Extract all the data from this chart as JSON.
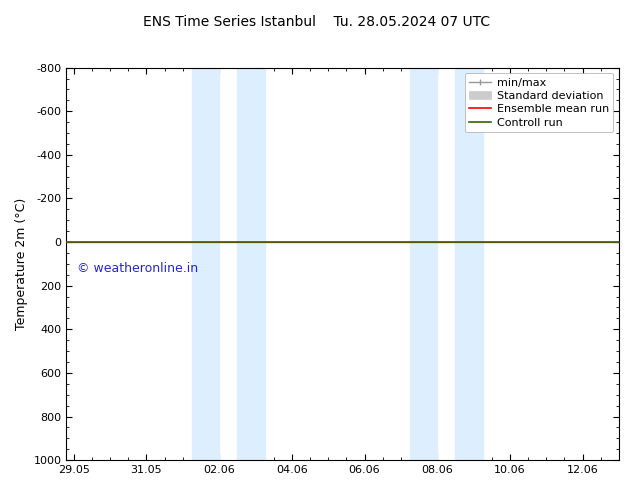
{
  "title": "ENS Time Series Istanbul",
  "title2": "Tu. 28.05.2024 07 UTC",
  "ylabel": "Temperature 2m (°C)",
  "ylim_top": -800,
  "ylim_bottom": 1000,
  "yticks": [
    -800,
    -600,
    -400,
    -200,
    0,
    200,
    400,
    600,
    800,
    1000
  ],
  "x_tick_labels": [
    "29.05",
    "31.05",
    "02.06",
    "04.06",
    "06.06",
    "08.06",
    "10.06",
    "12.06"
  ],
  "x_tick_pos": [
    0,
    2,
    4,
    6,
    8,
    10,
    12,
    14
  ],
  "xmin": -0.2,
  "xmax": 15.0,
  "watermark": "© weatheronline.in",
  "shade_bands": [
    {
      "xmin": 3.25,
      "xmax": 4.0
    },
    {
      "xmin": 4.5,
      "xmax": 5.25
    },
    {
      "xmin": 9.25,
      "xmax": 10.0
    },
    {
      "xmin": 10.5,
      "xmax": 11.25
    }
  ],
  "shade_color": "#ddeeff",
  "line_y": 0.0,
  "ensemble_mean_color": "#ff0000",
  "control_run_color": "#336600",
  "minmax_color": "#999999",
  "std_color": "#cccccc",
  "legend_entries": [
    "min/max",
    "Standard deviation",
    "Ensemble mean run",
    "Controll run"
  ],
  "bg_color": "#ffffff",
  "tick_color": "#000000",
  "fontsize_title": 10,
  "fontsize_axis": 9,
  "fontsize_ticks": 8,
  "fontsize_legend": 8,
  "fontsize_watermark": 9,
  "watermark_color": "#0000cc"
}
